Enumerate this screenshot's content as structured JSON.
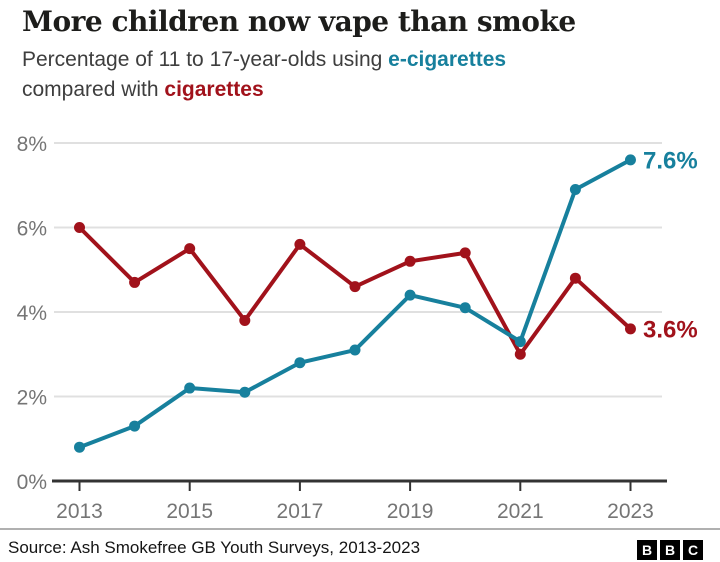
{
  "header": {
    "title": "More children now vape than smoke",
    "subtitle": {
      "line1_prefix": "Percentage of 11 to 17-year-olds using ",
      "highlight_vape": "e-cigarettes",
      "line2_prefix": "compared with ",
      "highlight_cig": "cigarettes"
    }
  },
  "chart_data": {
    "type": "line",
    "title": "More children now vape than smoke",
    "x": [
      2013,
      2014,
      2015,
      2016,
      2017,
      2018,
      2019,
      2020,
      2021,
      2022,
      2023
    ],
    "series": [
      {
        "name": "cigarettes",
        "color": "#a1121b",
        "values": [
          6.0,
          4.7,
          5.5,
          3.8,
          5.6,
          4.6,
          5.2,
          5.4,
          3.0,
          4.8,
          3.6
        ],
        "end_label": "3.6%"
      },
      {
        "name": "e-cigarettes",
        "color": "#17809d",
        "values": [
          0.8,
          1.3,
          2.2,
          2.1,
          2.8,
          3.1,
          4.4,
          4.1,
          3.3,
          6.9,
          7.6
        ],
        "end_label": "7.6%"
      }
    ],
    "ylim": [
      0,
      8
    ],
    "ytick_values": [
      0,
      2,
      4,
      6,
      8
    ],
    "ytick_labels": [
      "0%",
      "2%",
      "4%",
      "6%",
      "8%"
    ],
    "xtick_values": [
      2013,
      2015,
      2017,
      2019,
      2021,
      2023
    ],
    "xtick_labels": [
      "2013",
      "2015",
      "2017",
      "2019",
      "2021",
      "2023"
    ],
    "grid": "horizontal",
    "legend_position": "inline-subtitle"
  },
  "footer": {
    "source": "Source: Ash Smokefree GB Youth Surveys, 2013-2023",
    "logo_letters": [
      "B",
      "B",
      "C"
    ]
  },
  "colors": {
    "vape_accent": "#17809d",
    "cig_accent": "#a1121b",
    "gridline": "#e0e0e0",
    "axis": "#333333",
    "axis_label": "#757575",
    "title_text": "#1d1d1b",
    "subtitle_text": "#3e3e3e"
  }
}
